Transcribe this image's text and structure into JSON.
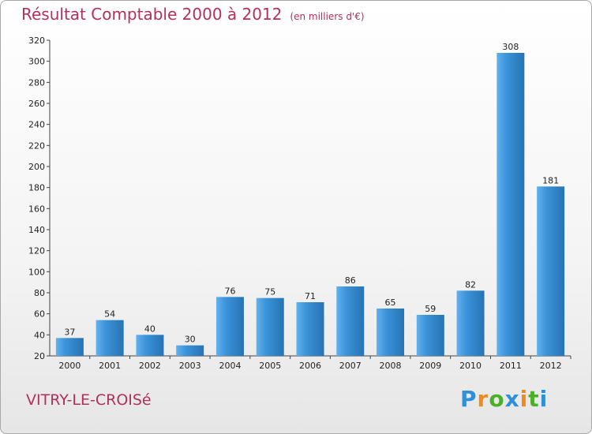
{
  "title": "Résultat Comptable 2000 à 2012",
  "subtitle": "(en milliers d'€)",
  "commune": "VITRY-LE-CROISé",
  "logo": {
    "letters": [
      "P",
      "r",
      "o",
      "x",
      "i",
      "t",
      "i"
    ],
    "colors": [
      "#2f8fd8",
      "#f08a1c",
      "#4caf28",
      "#2f8fd8",
      "#f08a1c",
      "#4caf28",
      "#2f8fd8"
    ]
  },
  "colors": {
    "bar": "#3b93d9",
    "bar_light": "#62b2ee",
    "bar_dark": "#2773b4",
    "title": "#b3305a"
  },
  "chart_data": {
    "type": "bar",
    "categories": [
      "2000",
      "2001",
      "2002",
      "2003",
      "2004",
      "2005",
      "2006",
      "2007",
      "2008",
      "2009",
      "2010",
      "2011",
      "2012"
    ],
    "values": [
      37,
      54,
      40,
      30,
      76,
      75,
      71,
      86,
      65,
      59,
      82,
      308,
      181
    ],
    "ylim": [
      20,
      320
    ],
    "yticks": [
      20,
      40,
      60,
      80,
      100,
      120,
      140,
      160,
      180,
      200,
      220,
      240,
      260,
      280,
      300,
      320
    ],
    "grid": false,
    "legend": "none"
  }
}
